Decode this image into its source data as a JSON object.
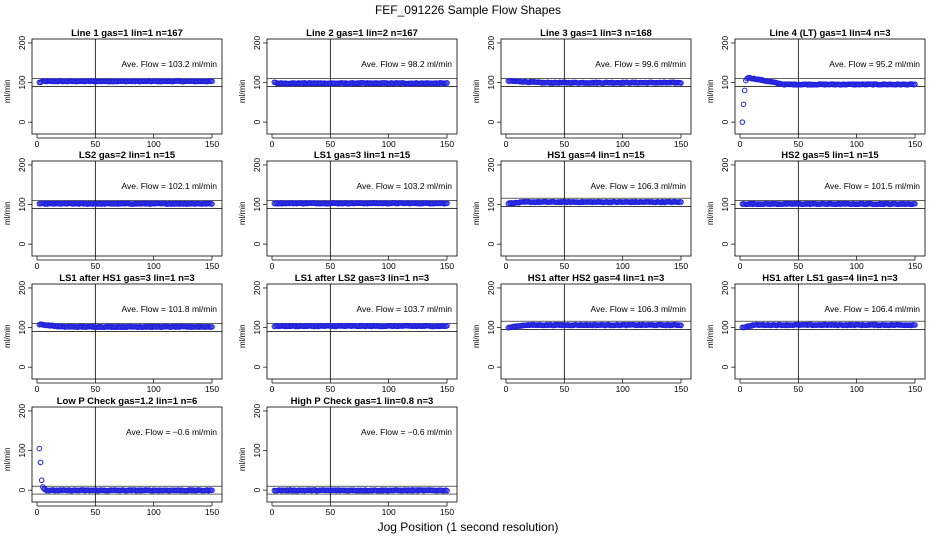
{
  "figure": {
    "title": "FEF_091226  Sample Flow Shapes",
    "xlabel": "Jog Position (1 second resolution)"
  },
  "chart_data": [
    {
      "type": "scatter",
      "title": "Line 1 gas=1 lin=1 n=167",
      "ylabel": "ml/min",
      "annotation": "Ave. Flow =  103.2  ml/min",
      "xlim": [
        0,
        150
      ],
      "ylim": [
        -30,
        210
      ],
      "xticks": [
        0,
        50,
        100,
        150
      ],
      "yticks": [
        0,
        100,
        200
      ],
      "ref_lines_y": [
        90,
        110
      ],
      "ref_line_x": 50,
      "profile": {
        "kind": "flat",
        "mean": 103.2,
        "start_value": 100,
        "settle_points": 3
      }
    },
    {
      "type": "scatter",
      "title": "Line 2 gas=1 lin=2 n=167",
      "ylabel": "ml/min",
      "annotation": "Ave. Flow =  98.2  ml/min",
      "xlim": [
        0,
        150
      ],
      "ylim": [
        -30,
        210
      ],
      "xticks": [
        0,
        50,
        100,
        150
      ],
      "yticks": [
        0,
        100,
        200
      ],
      "ref_lines_y": [
        90,
        110
      ],
      "ref_line_x": 50,
      "profile": {
        "kind": "flat",
        "mean": 98.2,
        "start_value": 100,
        "settle_points": 3
      }
    },
    {
      "type": "scatter",
      "title": "Line 3 gas=1 lin=3 n=168",
      "ylabel": "ml/min",
      "annotation": "Ave. Flow =  99.6  ml/min",
      "xlim": [
        0,
        150
      ],
      "ylim": [
        -30,
        210
      ],
      "xticks": [
        0,
        50,
        100,
        150
      ],
      "yticks": [
        0,
        100,
        200
      ],
      "ref_lines_y": [
        90,
        110
      ],
      "ref_line_x": 50,
      "profile": {
        "kind": "flat",
        "mean": 99.6,
        "start_value": 104,
        "settle_points": 30
      }
    },
    {
      "type": "scatter",
      "title": "Line 4 (LT) gas=1 lin=4 n=3",
      "ylabel": "ml/min",
      "annotation": "Ave. Flow =  95.2  ml/min",
      "xlim": [
        0,
        150
      ],
      "ylim": [
        -30,
        210
      ],
      "xticks": [
        0,
        50,
        100,
        150
      ],
      "yticks": [
        0,
        100,
        200
      ],
      "ref_lines_y": [
        90,
        110
      ],
      "ref_line_x": 50,
      "profile": {
        "kind": "startup",
        "mean": 95.2,
        "initial_points": [
          [
            2,
            0
          ],
          [
            3,
            45
          ],
          [
            4,
            80
          ],
          [
            5,
            105
          ],
          [
            6,
            110
          ],
          [
            7,
            112
          ]
        ],
        "settle_points": 30
      }
    },
    {
      "type": "scatter",
      "title": "LS2 gas=2 lin=1 n=15",
      "ylabel": "ml/min",
      "annotation": "Ave. Flow =  102.1  ml/min",
      "xlim": [
        0,
        150
      ],
      "ylim": [
        -30,
        210
      ],
      "xticks": [
        0,
        50,
        100,
        150
      ],
      "yticks": [
        0,
        100,
        200
      ],
      "ref_lines_y": [
        90,
        110
      ],
      "ref_line_x": 50,
      "profile": {
        "kind": "flat",
        "mean": 102.1,
        "start_value": 102,
        "settle_points": 1
      }
    },
    {
      "type": "scatter",
      "title": "LS1 gas=3 lin=1 n=15",
      "ylabel": "ml/min",
      "annotation": "Ave. Flow =  103.2  ml/min",
      "xlim": [
        0,
        150
      ],
      "ylim": [
        -30,
        210
      ],
      "xticks": [
        0,
        50,
        100,
        150
      ],
      "yticks": [
        0,
        100,
        200
      ],
      "ref_lines_y": [
        90,
        110
      ],
      "ref_line_x": 50,
      "profile": {
        "kind": "flat",
        "mean": 103.2,
        "start_value": 103,
        "settle_points": 1
      }
    },
    {
      "type": "scatter",
      "title": "HS1 gas=4 lin=1 n=15",
      "ylabel": "ml/min",
      "annotation": "Ave. Flow =  106.3  ml/min",
      "xlim": [
        0,
        150
      ],
      "ylim": [
        -30,
        210
      ],
      "xticks": [
        0,
        50,
        100,
        150
      ],
      "yticks": [
        0,
        100,
        200
      ],
      "ref_lines_y": [
        95,
        116
      ],
      "ref_line_x": 50,
      "profile": {
        "kind": "flat",
        "mean": 106.3,
        "start_value": 103,
        "settle_points": 15
      }
    },
    {
      "type": "scatter",
      "title": "HS2 gas=5 lin=1 n=15",
      "ylabel": "ml/min",
      "annotation": "Ave. Flow =  101.5  ml/min",
      "xlim": [
        0,
        150
      ],
      "ylim": [
        -30,
        210
      ],
      "xticks": [
        0,
        50,
        100,
        150
      ],
      "yticks": [
        0,
        100,
        200
      ],
      "ref_lines_y": [
        90,
        110
      ],
      "ref_line_x": 50,
      "profile": {
        "kind": "flat",
        "mean": 101.5,
        "start_value": 101,
        "settle_points": 1
      }
    },
    {
      "type": "scatter",
      "title": "LS1 after HS1 gas=3 lin=1 n=3",
      "ylabel": "ml/min",
      "annotation": "Ave. Flow =  101.8  ml/min",
      "xlim": [
        0,
        150
      ],
      "ylim": [
        -30,
        210
      ],
      "xticks": [
        0,
        50,
        100,
        150
      ],
      "yticks": [
        0,
        100,
        200
      ],
      "ref_lines_y": [
        90,
        110
      ],
      "ref_line_x": 50,
      "profile": {
        "kind": "flat",
        "mean": 101.8,
        "start_value": 108,
        "settle_points": 20
      }
    },
    {
      "type": "scatter",
      "title": "LS1 after LS2 gas=3 lin=1 n=3",
      "ylabel": "ml/min",
      "annotation": "Ave. Flow =  103.7  ml/min",
      "xlim": [
        0,
        150
      ],
      "ylim": [
        -30,
        210
      ],
      "xticks": [
        0,
        50,
        100,
        150
      ],
      "yticks": [
        0,
        100,
        200
      ],
      "ref_lines_y": [
        90,
        110
      ],
      "ref_line_x": 50,
      "profile": {
        "kind": "flat",
        "mean": 103.7,
        "start_value": 103,
        "settle_points": 1
      }
    },
    {
      "type": "scatter",
      "title": "HS1 after HS2 gas=4 lin=1 n=3",
      "ylabel": "ml/min",
      "annotation": "Ave. Flow =  106.3  ml/min",
      "xlim": [
        0,
        150
      ],
      "ylim": [
        -30,
        210
      ],
      "xticks": [
        0,
        50,
        100,
        150
      ],
      "yticks": [
        0,
        100,
        200
      ],
      "ref_lines_y": [
        95,
        116
      ],
      "ref_line_x": 50,
      "profile": {
        "kind": "flat",
        "mean": 106.3,
        "start_value": 100,
        "settle_points": 15
      }
    },
    {
      "type": "scatter",
      "title": "HS1 after LS1 gas=4 lin=1 n=3",
      "ylabel": "ml/min",
      "annotation": "Ave. Flow =  106.4  ml/min",
      "xlim": [
        0,
        150
      ],
      "ylim": [
        -30,
        210
      ],
      "xticks": [
        0,
        50,
        100,
        150
      ],
      "yticks": [
        0,
        100,
        200
      ],
      "ref_lines_y": [
        95,
        116
      ],
      "ref_line_x": 50,
      "profile": {
        "kind": "flat",
        "mean": 106.4,
        "start_value": 100,
        "settle_points": 10
      }
    },
    {
      "type": "scatter",
      "title": "Low P Check gas=1.2 lin=1 n=6",
      "ylabel": "ml/min",
      "annotation": "Ave. Flow =  −0.6  ml/min",
      "xlim": [
        0,
        150
      ],
      "ylim": [
        -30,
        210
      ],
      "xticks": [
        0,
        50,
        100,
        150
      ],
      "yticks": [
        0,
        100,
        200
      ],
      "ref_lines_y": [
        -10,
        10
      ],
      "ref_line_x": 50,
      "profile": {
        "kind": "decay",
        "mean": -0.6,
        "initial_points": [
          [
            2,
            105
          ],
          [
            3,
            70
          ],
          [
            4,
            25
          ],
          [
            5,
            8
          ],
          [
            6,
            3
          ]
        ],
        "settle_points": 1
      }
    },
    {
      "type": "scatter",
      "title": "High P Check gas=1 lin=0.8 n=3",
      "ylabel": "ml/min",
      "annotation": "Ave. Flow =  −0.6  ml/min",
      "xlim": [
        0,
        150
      ],
      "ylim": [
        -30,
        210
      ],
      "xticks": [
        0,
        50,
        100,
        150
      ],
      "yticks": [
        0,
        100,
        200
      ],
      "ref_lines_y": [
        -10,
        10
      ],
      "ref_line_x": 50,
      "profile": {
        "kind": "flat",
        "mean": -0.6,
        "start_value": 0,
        "settle_points": 1
      }
    }
  ],
  "colors": {
    "points": "#2222dd",
    "axes": "#000000"
  }
}
